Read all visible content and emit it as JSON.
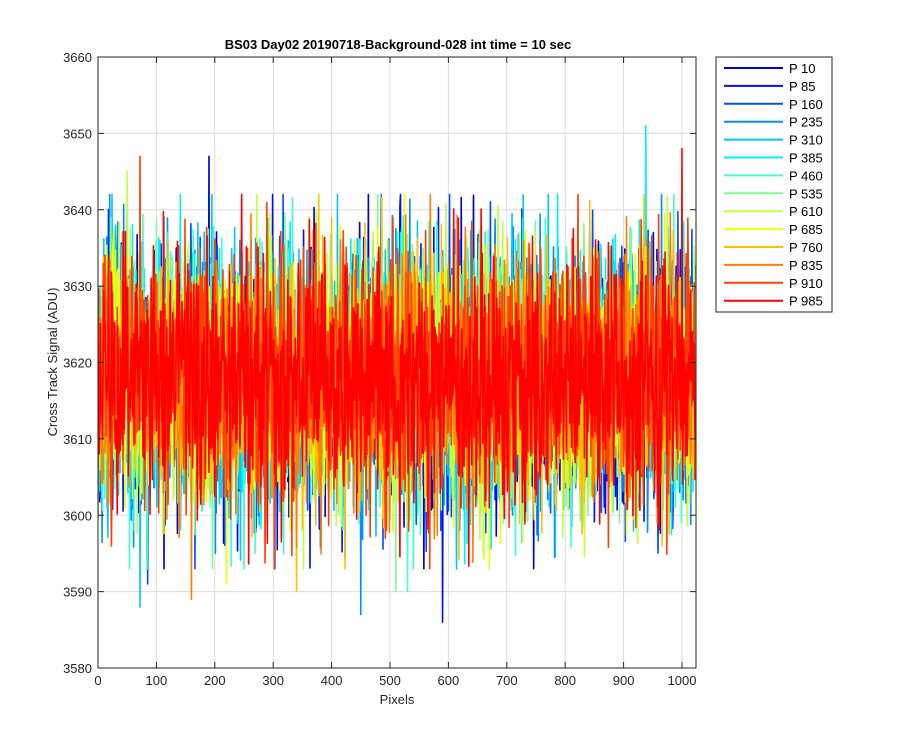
{
  "chart_data": {
    "type": "line",
    "title": "BS03 Day02 20190718-Background-028 int time = 10 sec",
    "xlabel": "Pixels",
    "ylabel": "Cross Track Signal (ADU)",
    "xlim": [
      0,
      1024
    ],
    "ylim": [
      3580,
      3660
    ],
    "xticks": [
      "0",
      "100",
      "200",
      "300",
      "400",
      "500",
      "600",
      "700",
      "800",
      "900",
      "1000"
    ],
    "yticks": [
      "3580",
      "3590",
      "3600",
      "3610",
      "3620",
      "3630",
      "3640",
      "3650",
      "3660"
    ],
    "grid": true,
    "legend_position": "outside-top-right",
    "noise_model": {
      "mean": 3618,
      "std": 8,
      "n_points": 1024
    },
    "series": [
      {
        "name": "P 10",
        "color": "#0000d0",
        "extreme": {
          "x": 190,
          "y": 3647
        }
      },
      {
        "name": "P 85",
        "color": "#0010f0",
        "extreme": {
          "x": 590,
          "y": 3586
        }
      },
      {
        "name": "P 160",
        "color": "#0050ff",
        "extreme": {
          "x": 85,
          "y": 3591
        }
      },
      {
        "name": "P 235",
        "color": "#0090ff",
        "extreme": {
          "x": 450,
          "y": 3587
        }
      },
      {
        "name": "P 310",
        "color": "#00c8ff",
        "extreme": {
          "x": 72,
          "y": 3588
        }
      },
      {
        "name": "P 385",
        "color": "#00f0ff",
        "extreme": {
          "x": 938,
          "y": 3651
        }
      },
      {
        "name": "P 460",
        "color": "#40ffd0",
        "extreme": {
          "x": 530,
          "y": 3590
        }
      },
      {
        "name": "P 535",
        "color": "#80ff90",
        "extreme": {
          "x": 510,
          "y": 3590
        }
      },
      {
        "name": "P 610",
        "color": "#c0ff40",
        "extreme": {
          "x": 50,
          "y": 3645
        }
      },
      {
        "name": "P 685",
        "color": "#f0ff00",
        "extreme": {
          "x": 220,
          "y": 3591
        }
      },
      {
        "name": "P 760",
        "color": "#ffc000",
        "extreme": {
          "x": 340,
          "y": 3590
        }
      },
      {
        "name": "P 835",
        "color": "#ff8000",
        "extreme": {
          "x": 160,
          "y": 3589
        }
      },
      {
        "name": "P 910",
        "color": "#ff4000",
        "extreme": {
          "x": 72,
          "y": 3647
        }
      },
      {
        "name": "P 985",
        "color": "#ff0000",
        "extreme": {
          "x": 1000,
          "y": 3648
        }
      }
    ]
  }
}
